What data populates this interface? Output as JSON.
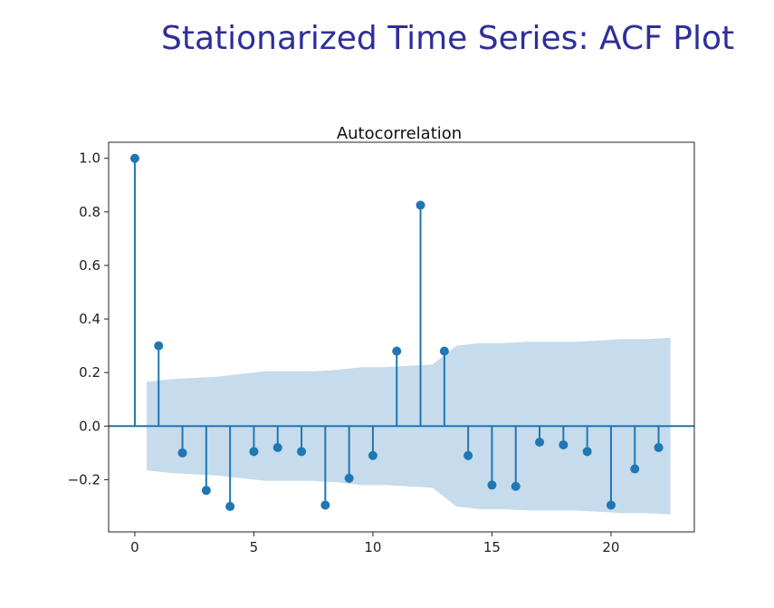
{
  "slide": {
    "title": "Stationarized Time Series: ACF Plot"
  },
  "colors": {
    "title": "#2e2e9a",
    "stem": "#1f77b4",
    "confidence_band": "#c6dbec"
  },
  "chart_data": {
    "type": "stem",
    "title": "Autocorrelation",
    "xlabel": "",
    "ylabel": "",
    "xlim": [
      -1.1,
      23.5
    ],
    "ylim": [
      -0.395,
      1.06
    ],
    "xticks": [
      0,
      5,
      10,
      15,
      20
    ],
    "xtick_labels": [
      "0",
      "5",
      "10",
      "15",
      "20"
    ],
    "yticks": [
      -0.2,
      0.0,
      0.2,
      0.4,
      0.6,
      0.8,
      1.0
    ],
    "ytick_labels": [
      "−0.2",
      "0.0",
      "0.2",
      "0.4",
      "0.6",
      "0.8",
      "1.0"
    ],
    "grid": false,
    "lags": [
      0,
      1,
      2,
      3,
      4,
      5,
      6,
      7,
      8,
      9,
      10,
      11,
      12,
      13,
      14,
      15,
      16,
      17,
      18,
      19,
      20,
      21,
      22
    ],
    "values": [
      1.0,
      0.3,
      -0.1,
      -0.24,
      -0.3,
      -0.095,
      -0.08,
      -0.095,
      -0.295,
      -0.195,
      -0.11,
      0.28,
      0.825,
      0.28,
      -0.11,
      -0.22,
      -0.225,
      -0.06,
      -0.07,
      -0.095,
      -0.295,
      -0.16,
      -0.08
    ],
    "confidence_interval": {
      "x": [
        0.5,
        1.5,
        2.5,
        3.5,
        4.5,
        5.5,
        6.5,
        7.5,
        8.5,
        9.5,
        10.5,
        11.5,
        12.5,
        13.5,
        14.5,
        15.5,
        16.5,
        17.5,
        18.5,
        19.5,
        20.5,
        21.5,
        22.5
      ],
      "upper": [
        0.165,
        0.175,
        0.18,
        0.185,
        0.195,
        0.205,
        0.205,
        0.205,
        0.21,
        0.22,
        0.22,
        0.225,
        0.23,
        0.3,
        0.31,
        0.31,
        0.315,
        0.315,
        0.315,
        0.32,
        0.325,
        0.325,
        0.33
      ]
    }
  }
}
